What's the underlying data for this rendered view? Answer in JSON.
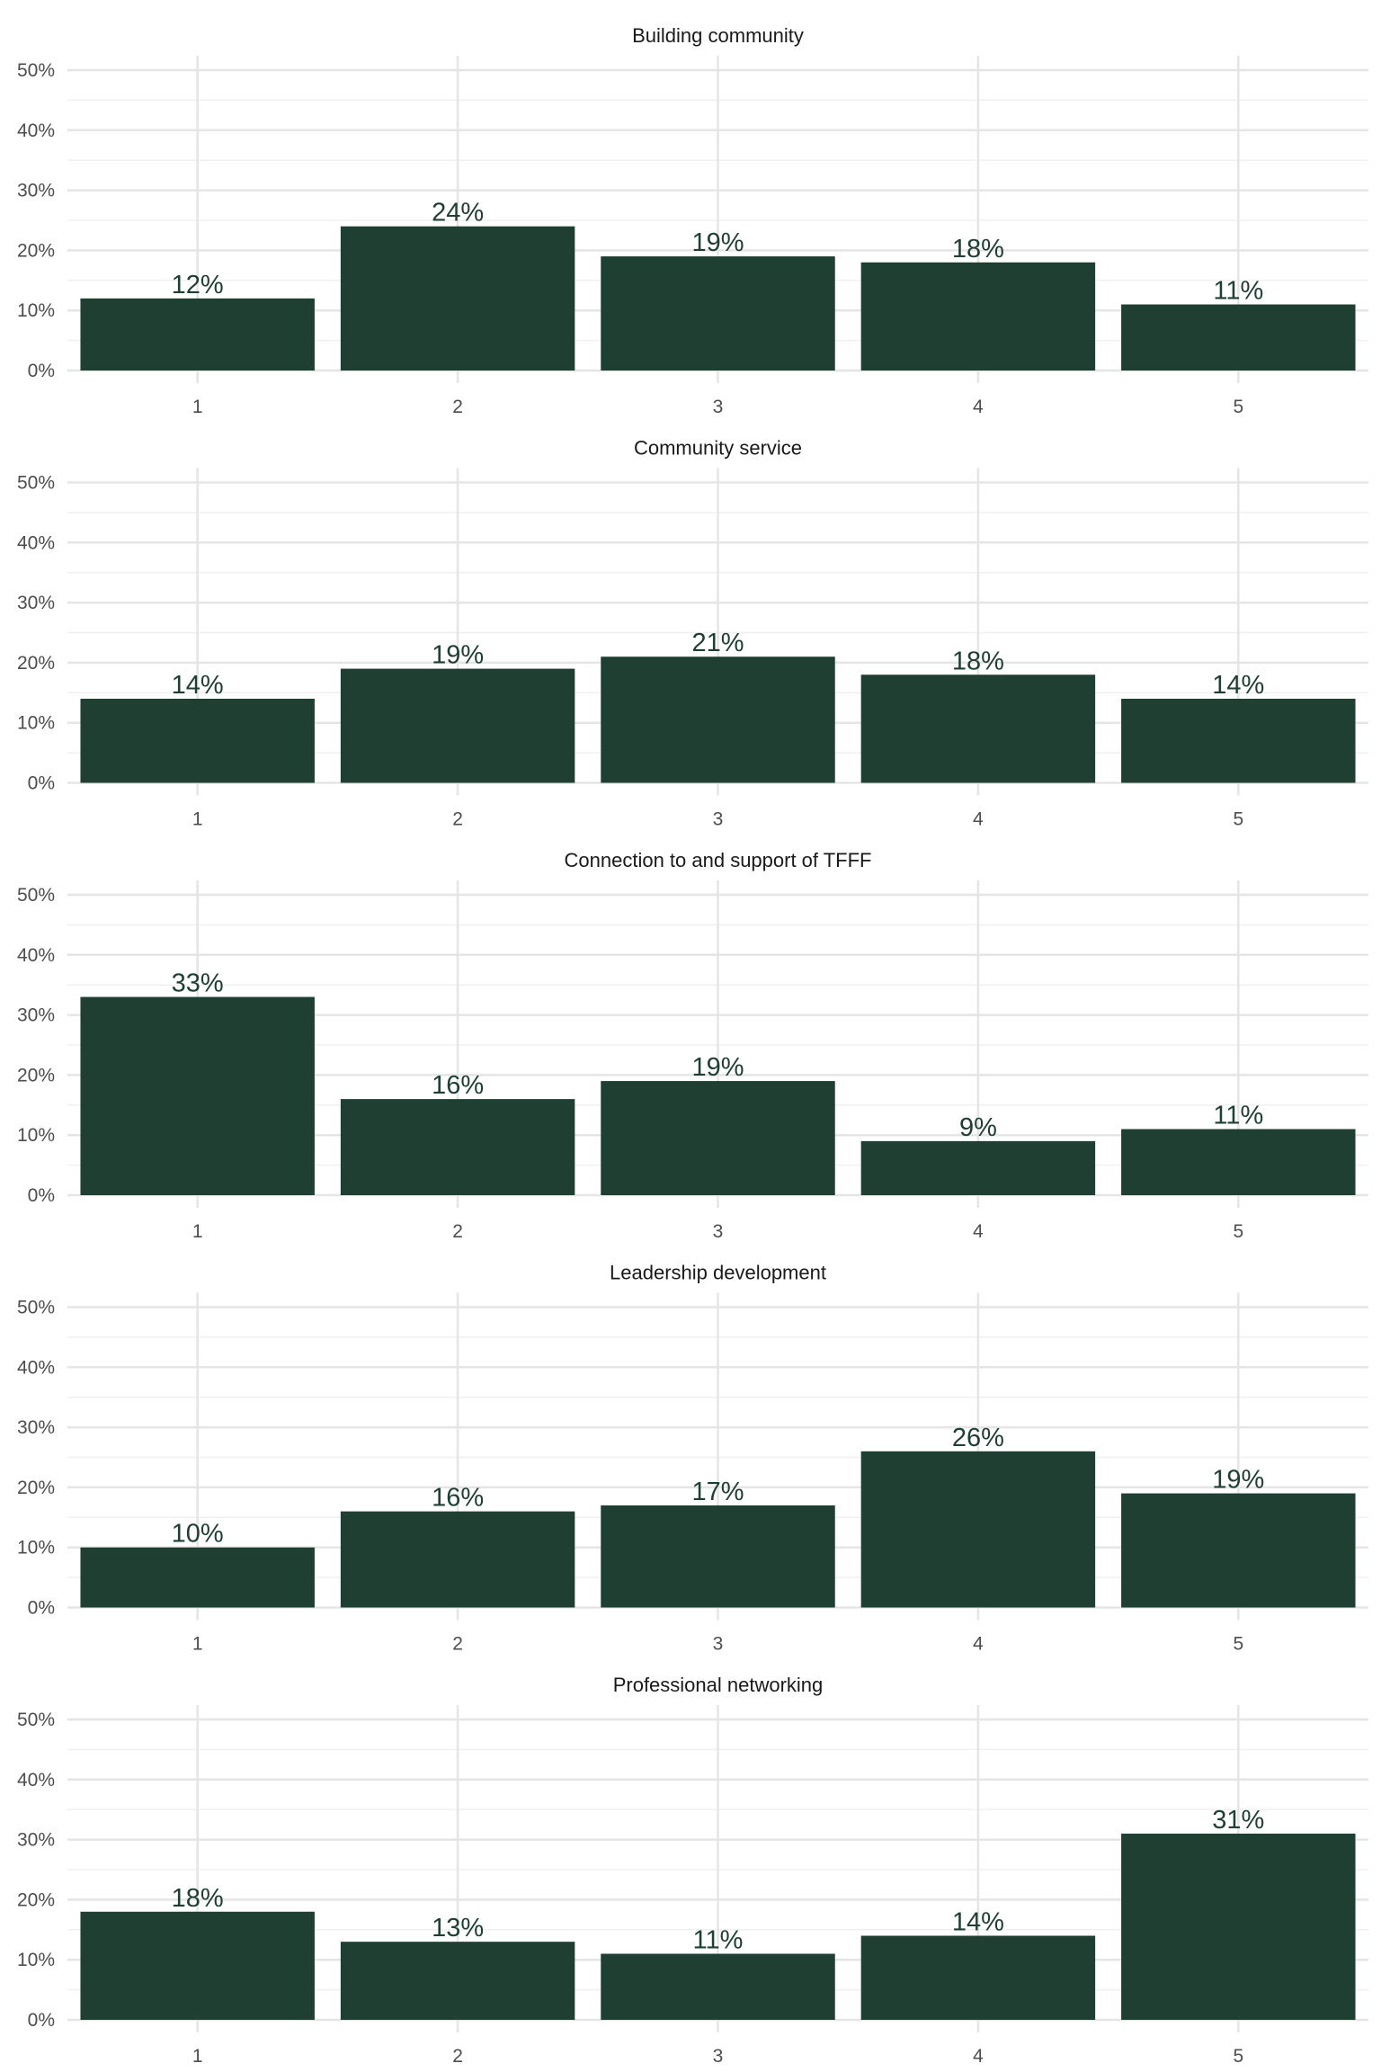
{
  "chart_data": {
    "type": "bar",
    "categories": [
      "1",
      "2",
      "3",
      "4",
      "5"
    ],
    "ylim": [
      0,
      0.52
    ],
    "y_ticks": [
      0,
      0.1,
      0.2,
      0.3,
      0.4,
      0.5
    ],
    "y_tick_labels": [
      "0%",
      "10%",
      "20%",
      "30%",
      "40%",
      "50%"
    ],
    "bar_color": "#1f3f33",
    "label_color": "#1f3f33",
    "grid": true,
    "legend": "none",
    "series": [
      {
        "name": "Building community",
        "values": [
          0.12,
          0.24,
          0.19,
          0.18,
          0.11
        ],
        "labels": [
          "12%",
          "24%",
          "19%",
          "18%",
          "11%"
        ]
      },
      {
        "name": "Community service",
        "values": [
          0.14,
          0.19,
          0.21,
          0.18,
          0.14
        ],
        "labels": [
          "14%",
          "19%",
          "21%",
          "18%",
          "14%"
        ]
      },
      {
        "name": "Connection to and support of TFFF",
        "values": [
          0.33,
          0.16,
          0.19,
          0.09,
          0.11
        ],
        "labels": [
          "33%",
          "16%",
          "19%",
          "9%",
          "11%"
        ]
      },
      {
        "name": "Leadership development",
        "values": [
          0.1,
          0.16,
          0.17,
          0.26,
          0.19
        ],
        "labels": [
          "10%",
          "16%",
          "17%",
          "26%",
          "19%"
        ]
      },
      {
        "name": "Professional networking",
        "values": [
          0.18,
          0.13,
          0.11,
          0.14,
          0.31
        ],
        "labels": [
          "18%",
          "13%",
          "11%",
          "14%",
          "31%"
        ]
      }
    ]
  }
}
